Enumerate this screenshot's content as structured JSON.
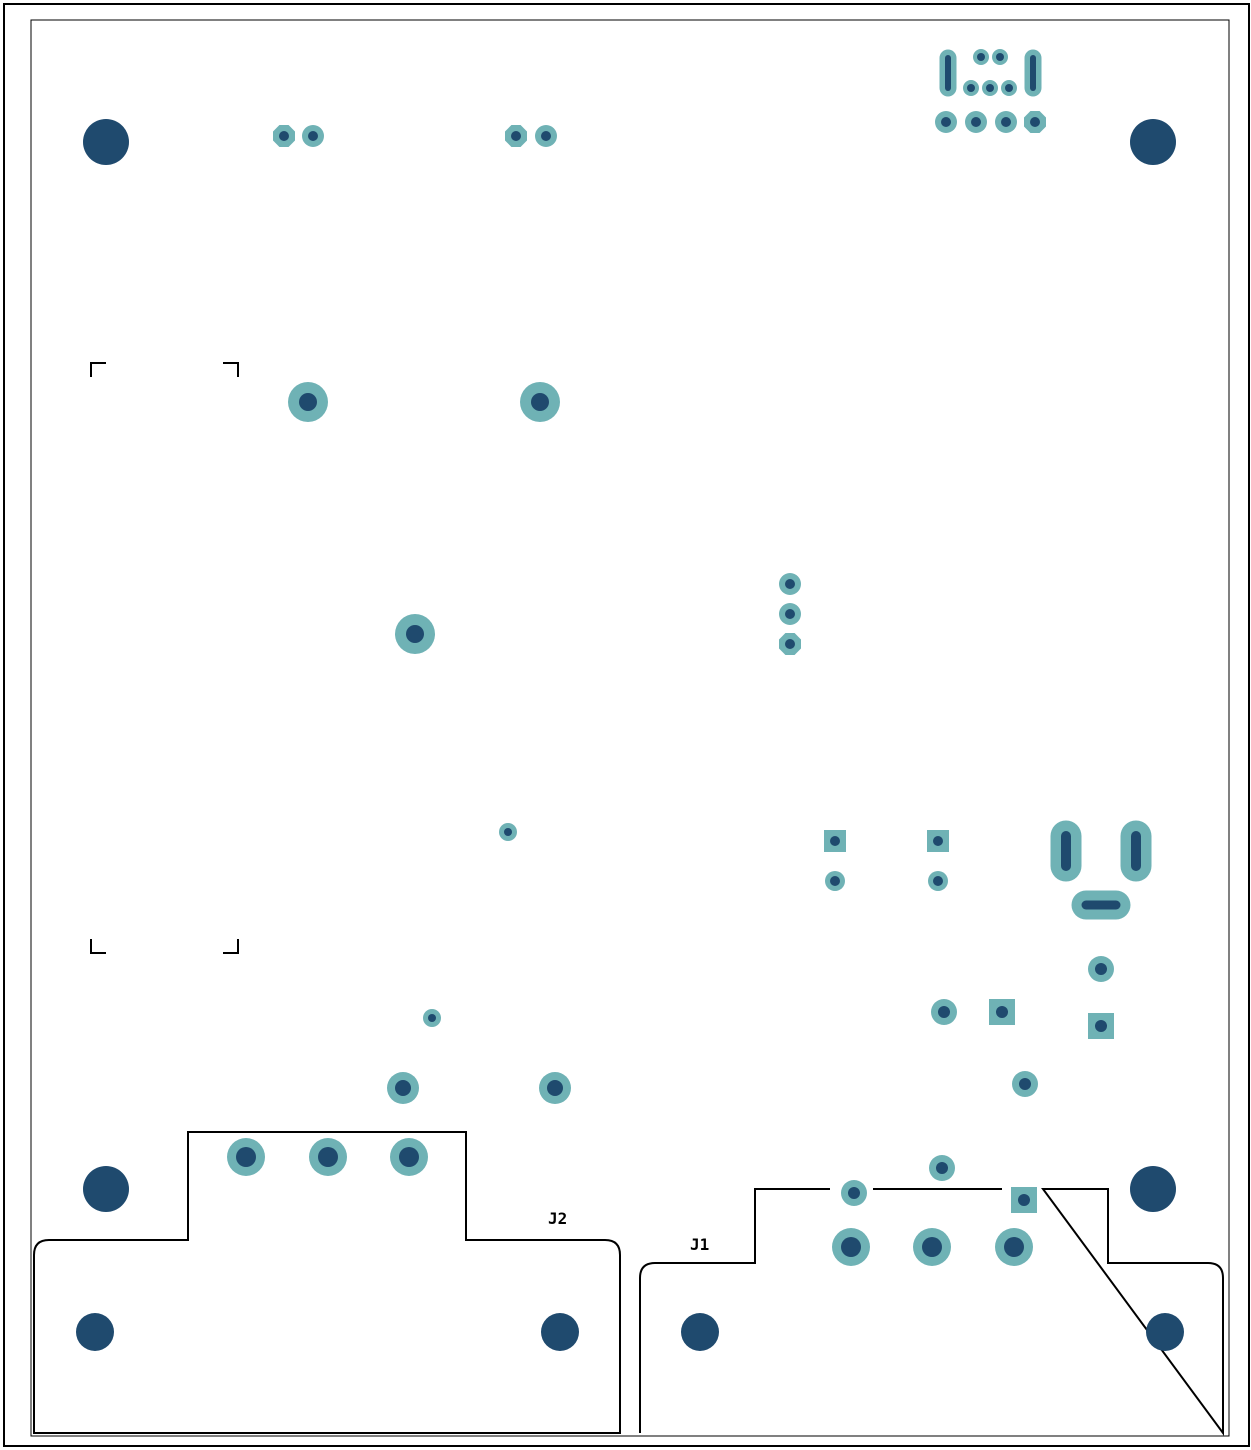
{
  "colors": {
    "background": "#ffffff",
    "outline": "#000000",
    "pad_ring": "#6fb2b5",
    "drill": "#1f4a6e"
  },
  "labels": {
    "j1": "J1",
    "j2": "J2"
  }
}
